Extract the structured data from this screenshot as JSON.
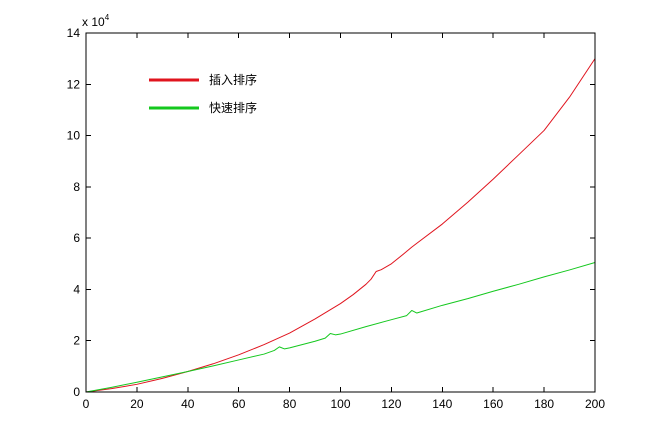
{
  "chart_data": {
    "type": "line",
    "title": "",
    "xlabel": "",
    "ylabel": "",
    "xlim": [
      0,
      200
    ],
    "ylim": [
      0,
      140000
    ],
    "x_ticks": [
      0,
      20,
      40,
      60,
      80,
      100,
      120,
      140,
      160,
      180,
      200
    ],
    "y_ticks": [
      0,
      20000,
      40000,
      60000,
      80000,
      100000,
      120000,
      140000
    ],
    "y_tick_labels": [
      "0",
      "2",
      "4",
      "6",
      "8",
      "10",
      "12",
      "14"
    ],
    "y_scale_base": "x 10",
    "y_scale_exponent": "4",
    "grid": false,
    "legend_position": "top-left",
    "series": [
      {
        "name": "插入排序",
        "color": "#e0141e",
        "x": [
          0,
          10,
          20,
          30,
          40,
          50,
          60,
          70,
          80,
          90,
          100,
          105,
          110,
          112,
          114,
          116,
          120,
          125,
          128,
          130,
          140,
          150,
          160,
          170,
          180,
          190,
          200
        ],
        "y": [
          0,
          1300,
          3000,
          5300,
          8000,
          11000,
          14500,
          18500,
          23000,
          28500,
          34500,
          38000,
          42000,
          44000,
          47000,
          47700,
          50000,
          54000,
          56500,
          58000,
          65500,
          74000,
          83000,
          92500,
          102000,
          115000,
          130000
        ]
      },
      {
        "name": "快速排序",
        "color": "#14c81e",
        "x": [
          0,
          10,
          20,
          30,
          40,
          50,
          60,
          70,
          74,
          76,
          78,
          80,
          90,
          94,
          96,
          98,
          100,
          110,
          120,
          126,
          128,
          130,
          140,
          150,
          160,
          170,
          180,
          190,
          200
        ],
        "y": [
          0,
          1800,
          3800,
          5900,
          8000,
          10200,
          12500,
          14800,
          16200,
          17600,
          16800,
          17200,
          19800,
          21000,
          22800,
          22300,
          22600,
          25500,
          28200,
          29800,
          31800,
          30800,
          33800,
          36400,
          39300,
          42000,
          44900,
          47600,
          50500
        ]
      }
    ]
  }
}
